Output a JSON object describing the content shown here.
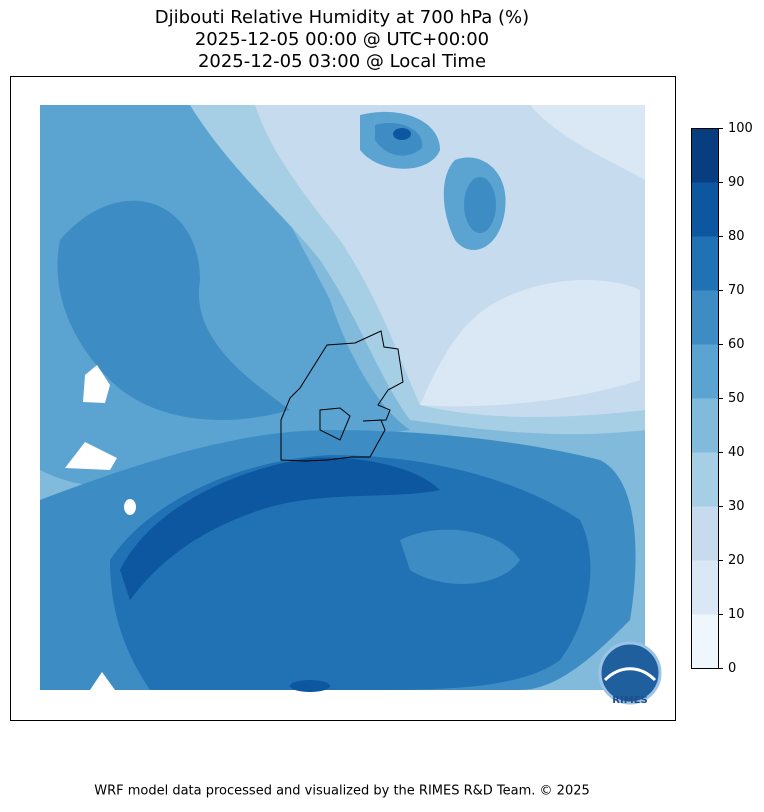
{
  "title_lines": [
    "Djibouti Relative Humidity at 700 hPa (%)",
    "2025-12-05 00:00 @ UTC+00:00",
    "2025-12-05 03:00 @ Local Time"
  ],
  "colorbar": {
    "levels": [
      0,
      10,
      20,
      30,
      40,
      50,
      60,
      70,
      80,
      90,
      100
    ],
    "colors": [
      "#eff6fc",
      "#dae8f6",
      "#c7dbef",
      "#a6cee4",
      "#81badb",
      "#5ba3d0",
      "#3d8dc4",
      "#2171b5",
      "#0d56a0",
      "#083d7f"
    ],
    "ticks": [
      0,
      10,
      20,
      30,
      40,
      50,
      60,
      70,
      80,
      90,
      100
    ]
  },
  "logo": {
    "label": "RIMES"
  },
  "footer": "WRF model data processed and visualized by the RIMES R&D Team. © 2025"
}
